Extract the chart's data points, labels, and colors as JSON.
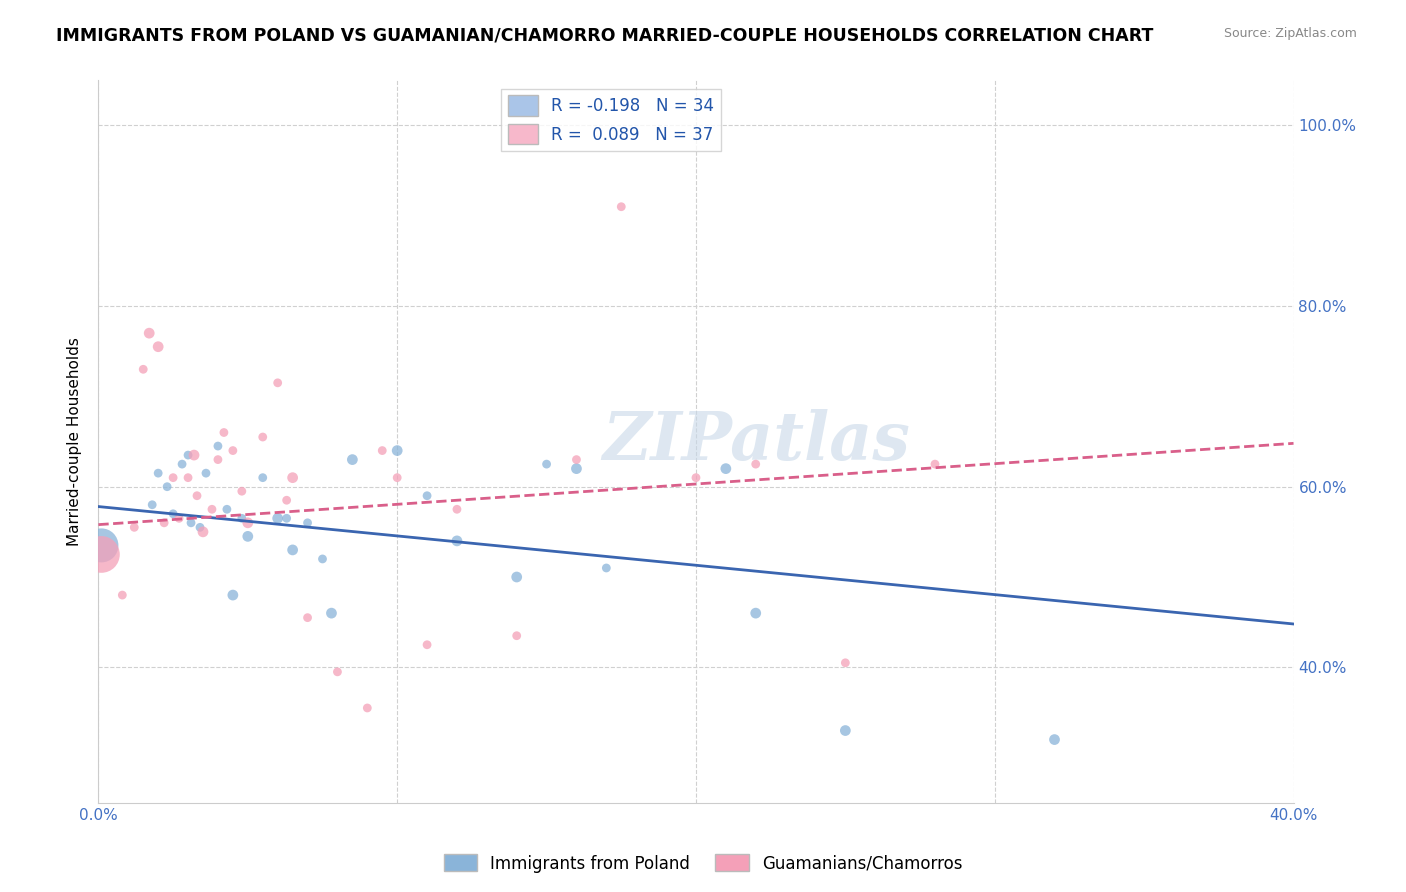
{
  "title": "IMMIGRANTS FROM POLAND VS GUAMANIAN/CHAMORRO MARRIED-COUPLE HOUSEHOLDS CORRELATION CHART",
  "source": "Source: ZipAtlas.com",
  "ylabel": "Married-couple Households",
  "xlim": [
    0.0,
    0.4
  ],
  "ylim": [
    0.25,
    1.05
  ],
  "xticks": [
    0.0,
    0.1,
    0.2,
    0.3,
    0.4
  ],
  "yticks_right": [
    0.4,
    0.6,
    0.8,
    1.0
  ],
  "ytick_labels_right": [
    "40.0%",
    "60.0%",
    "80.0%",
    "100.0%"
  ],
  "xtick_labels": [
    "0.0%",
    "",
    "",
    "",
    "40.0%"
  ],
  "legend_label1": "R = -0.198   N = 34",
  "legend_label2": "R =  0.089   N = 37",
  "legend_color1": "#aac5e8",
  "legend_color2": "#f7b8cb",
  "blue_color": "#8ab4d9",
  "pink_color": "#f4a0b8",
  "trend_blue": "#3a65b0",
  "trend_pink": "#d95f8a",
  "watermark": "ZIPatlas",
  "blue_points_x": [
    0.001,
    0.018,
    0.02,
    0.023,
    0.025,
    0.028,
    0.03,
    0.031,
    0.034,
    0.036,
    0.04,
    0.043,
    0.045,
    0.048,
    0.05,
    0.055,
    0.06,
    0.063,
    0.065,
    0.07,
    0.075,
    0.078,
    0.085,
    0.1,
    0.11,
    0.12,
    0.14,
    0.15,
    0.16,
    0.17,
    0.21,
    0.22,
    0.25,
    0.32
  ],
  "blue_points_y": [
    0.535,
    0.58,
    0.615,
    0.6,
    0.57,
    0.625,
    0.635,
    0.56,
    0.555,
    0.615,
    0.645,
    0.575,
    0.48,
    0.565,
    0.545,
    0.61,
    0.565,
    0.565,
    0.53,
    0.56,
    0.52,
    0.46,
    0.63,
    0.64,
    0.59,
    0.54,
    0.5,
    0.625,
    0.62,
    0.51,
    0.62,
    0.46,
    0.33,
    0.32
  ],
  "blue_points_size": [
    600,
    40,
    40,
    40,
    40,
    40,
    40,
    40,
    40,
    40,
    40,
    40,
    60,
    40,
    60,
    40,
    60,
    40,
    60,
    40,
    40,
    60,
    60,
    60,
    40,
    60,
    60,
    40,
    60,
    40,
    60,
    60,
    60,
    60
  ],
  "pink_points_x": [
    0.001,
    0.008,
    0.012,
    0.015,
    0.017,
    0.02,
    0.022,
    0.025,
    0.027,
    0.03,
    0.032,
    0.033,
    0.035,
    0.038,
    0.04,
    0.042,
    0.045,
    0.048,
    0.05,
    0.055,
    0.06,
    0.063,
    0.065,
    0.07,
    0.08,
    0.09,
    0.095,
    0.1,
    0.11,
    0.12,
    0.14,
    0.16,
    0.175,
    0.2,
    0.22,
    0.25,
    0.28
  ],
  "pink_points_y": [
    0.525,
    0.48,
    0.555,
    0.73,
    0.77,
    0.755,
    0.56,
    0.61,
    0.565,
    0.61,
    0.635,
    0.59,
    0.55,
    0.575,
    0.63,
    0.66,
    0.64,
    0.595,
    0.56,
    0.655,
    0.715,
    0.585,
    0.61,
    0.455,
    0.395,
    0.355,
    0.64,
    0.61,
    0.425,
    0.575,
    0.435,
    0.63,
    0.91,
    0.61,
    0.625,
    0.405,
    0.625
  ],
  "pink_points_size": [
    700,
    40,
    40,
    40,
    60,
    60,
    40,
    40,
    40,
    40,
    60,
    40,
    60,
    40,
    40,
    40,
    40,
    40,
    60,
    40,
    40,
    40,
    60,
    40,
    40,
    40,
    40,
    40,
    40,
    40,
    40,
    40,
    40,
    40,
    40,
    40,
    40
  ],
  "blue_line_x": [
    0.0,
    0.4
  ],
  "blue_line_y": [
    0.578,
    0.448
  ],
  "pink_line_x": [
    0.0,
    0.4
  ],
  "pink_line_y": [
    0.558,
    0.648
  ],
  "background_color": "#ffffff",
  "grid_color": "#d0d0d0",
  "title_fontsize": 12.5,
  "axis_fontsize": 11
}
